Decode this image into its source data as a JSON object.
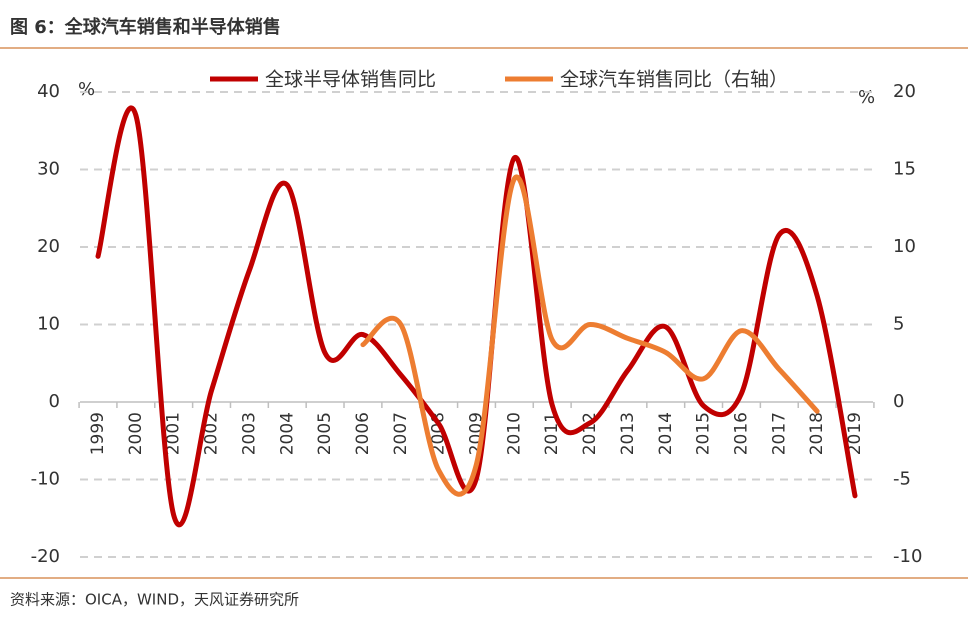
{
  "chart_data": {
    "type": "line",
    "title": "图 6：全球汽车销售和半导体销售",
    "source": "资料来源：OICA，WIND，天风证券研究所",
    "y_unit": "%",
    "y2_unit": "%",
    "categories": [
      "1999",
      "2000",
      "2001",
      "2002",
      "2003",
      "2004",
      "2005",
      "2006",
      "2007",
      "2008",
      "2009",
      "2010",
      "2011",
      "2012",
      "2013",
      "2014",
      "2015",
      "2016",
      "2017",
      "2018",
      "2019"
    ],
    "series": [
      {
        "name": "全球半导体销售同比",
        "color": "#c00000",
        "axis": "y",
        "values": [
          18.8,
          37.0,
          -14.6,
          1.5,
          17,
          28,
          6.3,
          8.7,
          3.5,
          -2.8,
          -9.8,
          31.5,
          -0.4,
          -2.7,
          4.1,
          9.7,
          -0.5,
          1.1,
          21.6,
          13.7,
          -12.1
        ]
      },
      {
        "name": "全球汽车销售同比（右轴）",
        "color": "#ed7d31",
        "axis": "y2",
        "values": [
          null,
          null,
          null,
          null,
          null,
          null,
          null,
          3.7,
          5.0,
          -4.4,
          -4.0,
          14.4,
          4.0,
          5.0,
          4.1,
          3.2,
          1.5,
          4.6,
          2.1,
          -0.6,
          null
        ]
      }
    ],
    "ylim": [
      -20,
      40
    ],
    "yticks": [
      -20,
      -10,
      0,
      10,
      20,
      30,
      40
    ],
    "y2lim": [
      -10,
      20
    ],
    "y2ticks": [
      -10,
      -5,
      0,
      5,
      10,
      15,
      20
    ],
    "grid": true,
    "legend": "top"
  }
}
